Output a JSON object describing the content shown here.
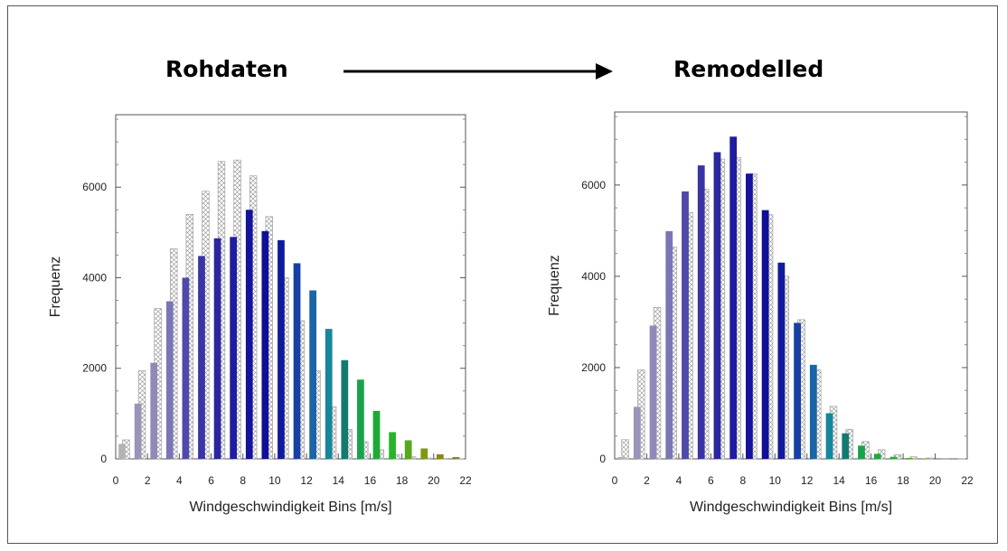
{
  "headings": {
    "left": "Rohdaten",
    "right": "Remodelled"
  },
  "colors": {
    "bins": [
      "#b3b3b3",
      "#9a94b8",
      "#8f8ab8",
      "#7a76b5",
      "#4f49a8",
      "#3a34a5",
      "#2a26a0",
      "#1f1ca0",
      "#15129b",
      "#100f96",
      "#121a9c",
      "#1640a4",
      "#1a64a8",
      "#15869c",
      "#127a6e",
      "#1aa24a",
      "#1eaa36",
      "#26b42a",
      "#56a81e",
      "#7c9814",
      "#928414",
      "#9a7e14"
    ],
    "reference_hatch": "#888888"
  },
  "chart_data": [
    {
      "type": "bar",
      "title": "",
      "xlabel": "Windgeschwindigkeit Bins [m/s]",
      "ylabel": "Frequenz",
      "xlim": [
        0,
        22
      ],
      "ylim": [
        0,
        7600
      ],
      "xticks": [
        0,
        2,
        4,
        6,
        8,
        10,
        12,
        14,
        16,
        18,
        20,
        22
      ],
      "yticks": [
        0,
        2000,
        4000,
        6000
      ],
      "bin_start": [
        0,
        1,
        2,
        3,
        4,
        5,
        6,
        7,
        8,
        9,
        10,
        11,
        12,
        13,
        14,
        15,
        16,
        17,
        18,
        19,
        20,
        21
      ],
      "series": [
        {
          "role": "solid",
          "values": [
            330,
            1220,
            2120,
            3480,
            4000,
            4480,
            4870,
            4900,
            5500,
            5030,
            4830,
            4320,
            3720,
            2870,
            2180,
            1750,
            1060,
            590,
            410,
            230,
            100,
            40
          ]
        },
        {
          "role": "hatched",
          "values": [
            420,
            1950,
            3320,
            4640,
            5400,
            5910,
            6570,
            6600,
            6250,
            5350,
            4000,
            3050,
            1950,
            1150,
            650,
            380,
            200,
            90,
            45,
            20,
            8,
            3
          ]
        }
      ]
    },
    {
      "type": "bar",
      "title": "",
      "xlabel": "Windgeschwindigkeit Bins [m/s]",
      "ylabel": "Frequenz",
      "xlim": [
        0,
        22
      ],
      "ylim": [
        0,
        7600
      ],
      "xticks": [
        0,
        2,
        4,
        6,
        8,
        10,
        12,
        14,
        16,
        18,
        20,
        22
      ],
      "yticks": [
        0,
        2000,
        4000,
        6000
      ],
      "bin_start": [
        0,
        1,
        2,
        3,
        4,
        5,
        6,
        7,
        8,
        9,
        10,
        11,
        12,
        13,
        14,
        15,
        16,
        17,
        18,
        19,
        20,
        21
      ],
      "series": [
        {
          "role": "solid",
          "values": [
            40,
            1140,
            2920,
            4990,
            5860,
            6430,
            6720,
            7060,
            6250,
            5450,
            4300,
            2980,
            2060,
            1000,
            560,
            290,
            110,
            45,
            20,
            8,
            3,
            1
          ]
        },
        {
          "role": "hatched",
          "values": [
            420,
            1950,
            3320,
            4640,
            5400,
            5910,
            6570,
            6600,
            6250,
            5350,
            4000,
            3050,
            1950,
            1150,
            650,
            380,
            200,
            90,
            45,
            20,
            8,
            3
          ]
        }
      ]
    }
  ]
}
